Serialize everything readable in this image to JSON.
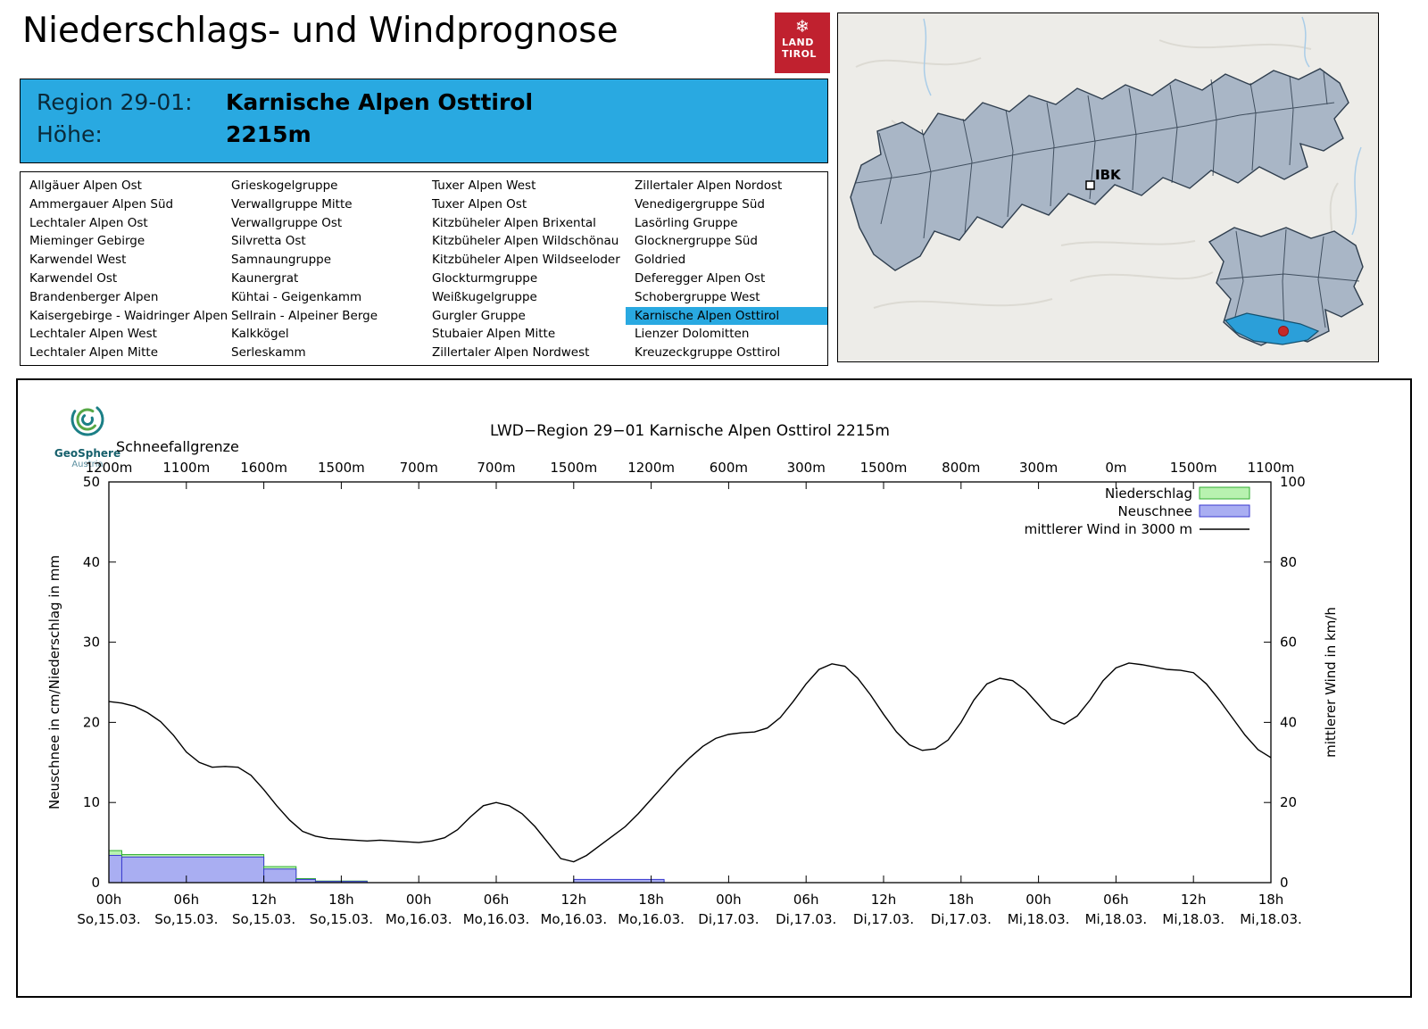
{
  "header": {
    "title": "Niederschlags- und Windprognose",
    "logo": {
      "icon": "snowflake-icon",
      "line1": "LAND",
      "line2": "TIROL"
    }
  },
  "colors": {
    "accent_blue": "#29a9e1",
    "logo_red": "#c0212f"
  },
  "region_info": {
    "region_label": "Region 29-01:",
    "region_name": "Karnische Alpen Osttirol",
    "altitude_label": "Höhe:",
    "altitude_value": "2215m"
  },
  "region_list": {
    "selected": "Karnische Alpen Osttirol",
    "columns": [
      [
        "Allgäuer Alpen Ost",
        "Ammergauer Alpen Süd",
        "Lechtaler Alpen Ost",
        "Mieminger Gebirge",
        "Karwendel West",
        "Karwendel Ost",
        "Brandenberger Alpen",
        "Kaisergebirge - Waidringer Alpen",
        "Lechtaler Alpen West",
        "Lechtaler Alpen Mitte"
      ],
      [
        "Grieskogelgruppe",
        "Verwallgruppe Mitte",
        "Verwallgruppe Ost",
        "Silvretta Ost",
        "Samnaungruppe",
        "Kaunergrat",
        "Kühtai - Geigenkamm",
        "Sellrain - Alpeiner Berge",
        "Kalkkögel",
        "Serleskamm"
      ],
      [
        "Tuxer Alpen West",
        "Tuxer Alpen Ost",
        "Kitzbüheler Alpen Brixental",
        "Kitzbüheler Alpen Wildschönau",
        "Kitzbüheler Alpen Wildseeloder",
        "Glockturmgruppe",
        "Weißkugelgruppe",
        "Gurgler Gruppe",
        "Stubaier Alpen Mitte",
        "Zillertaler Alpen Nordwest"
      ],
      [
        "Zillertaler Alpen Nordost",
        "Venedigergruppe Süd",
        "Lasörling Gruppe",
        "Glocknergruppe Süd",
        "Goldried",
        "Deferegger Alpen Ost",
        "Schobergruppe West",
        "Karnische Alpen Osttirol",
        "Lienzer Dolomitten",
        "Kreuzeckgruppe Osttirol"
      ]
    ]
  },
  "map": {
    "city_label": "IBK"
  },
  "chart_logo": {
    "name": "GeoSphere",
    "sub": "Austria"
  },
  "chart_data": {
    "type": "bar",
    "title": "LWD−Region 29−01 Karnische Alpen Osttirol 2215m",
    "snowline_label": "Schneefallgrenze",
    "snowline_values": [
      "1200m",
      "1100m",
      "1600m",
      "1500m",
      "700m",
      "700m",
      "1500m",
      "1200m",
      "600m",
      "300m",
      "1500m",
      "800m",
      "300m",
      "0m",
      "1500m",
      "1100m"
    ],
    "ylabel_left": "Neuschnee in cm/Niederschlag in mm",
    "ylabel_right": "mittlerer Wind in km/h",
    "ylim_left": [
      0,
      50
    ],
    "ylim_right": [
      0,
      100
    ],
    "y_ticks_left": [
      0,
      10,
      20,
      30,
      40,
      50
    ],
    "y_ticks_right": [
      0,
      20,
      40,
      60,
      80,
      100
    ],
    "x_range_hours": [
      0,
      90
    ],
    "x_tick_step_hours": 6,
    "x_tick_hours": [
      "00h",
      "06h",
      "12h",
      "18h",
      "00h",
      "06h",
      "12h",
      "18h",
      "00h",
      "06h",
      "12h",
      "18h",
      "00h",
      "06h",
      "12h",
      "18h"
    ],
    "x_tick_days": [
      "So,15.03.",
      "So,15.03.",
      "So,15.03.",
      "So,15.03.",
      "Mo,16.03.",
      "Mo,16.03.",
      "Mo,16.03.",
      "Mo,16.03.",
      "Di,17.03.",
      "Di,17.03.",
      "Di,17.03.",
      "Di,17.03.",
      "Mi,18.03.",
      "Mi,18.03.",
      "Mi,18.03.",
      "Mi,18.03."
    ],
    "legend": [
      {
        "label": "Niederschlag",
        "type": "box",
        "fill": "#b8f2b0",
        "stroke": "#2fae2f"
      },
      {
        "label": "Neuschnee",
        "type": "box",
        "fill": "#a9aef2",
        "stroke": "#3a3ad0"
      },
      {
        "label": "mittlerer Wind in 3000 m",
        "type": "line",
        "stroke": "#000000"
      }
    ],
    "colors": {
      "precip_fill": "#b8f2b0",
      "precip_stroke": "#2fae2f",
      "snow_fill": "#a9aef2",
      "snow_stroke": "#3a3ad0",
      "wind_stroke": "#000000"
    },
    "precip_segments": [
      {
        "start": 0,
        "end": 1,
        "precip_mm": 4.0,
        "snow_cm": 3.4
      },
      {
        "start": 1,
        "end": 12,
        "precip_mm": 3.5,
        "snow_cm": 3.2
      },
      {
        "start": 12,
        "end": 14.5,
        "precip_mm": 2.0,
        "snow_cm": 1.7
      },
      {
        "start": 14.5,
        "end": 16,
        "precip_mm": 0.5,
        "snow_cm": 0.4
      },
      {
        "start": 16,
        "end": 20,
        "precip_mm": 0.2,
        "snow_cm": 0.15
      },
      {
        "start": 36,
        "end": 43,
        "precip_mm": 0.25,
        "snow_cm": 0.4
      }
    ],
    "wind_kmh": [
      45.2,
      44.8,
      44,
      42.4,
      40.2,
      36.8,
      32.6,
      30,
      28.8,
      29,
      28.8,
      26.8,
      23.2,
      19.2,
      15.6,
      12.8,
      11.6,
      11,
      10.8,
      10.6,
      10.4,
      10.6,
      10.4,
      10.2,
      10,
      10.4,
      11.2,
      13.2,
      16.4,
      19.2,
      20,
      19.2,
      17.2,
      14,
      10,
      6,
      5.2,
      6.8,
      9.2,
      11.6,
      14,
      17.2,
      20.8,
      24.4,
      28,
      31.2,
      34,
      36,
      37,
      37.4,
      37.6,
      38.6,
      41.2,
      45.2,
      49.6,
      53.2,
      54.6,
      54,
      51,
      46.8,
      42,
      37.6,
      34.4,
      33,
      33.4,
      35.6,
      40,
      45.6,
      49.6,
      51,
      50.4,
      48,
      44.4,
      40.8,
      39.6,
      41.6,
      45.6,
      50.4,
      53.6,
      54.8,
      54.4,
      53.8,
      53.2,
      53,
      52.4,
      49.6,
      45.6,
      41.2,
      36.8,
      33.2,
      31.2
    ]
  }
}
